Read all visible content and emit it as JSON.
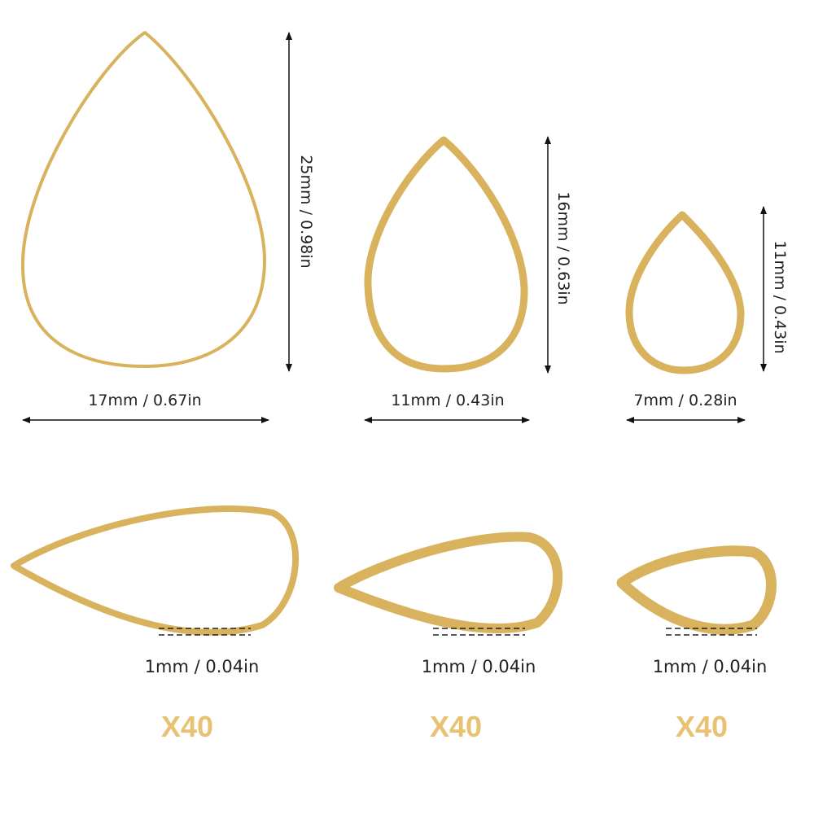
{
  "items": [
    {
      "width": "17mm / 0.67in",
      "height": "25mm / 0.98in",
      "thickness": "1mm / 0.04in",
      "quantity": "X40"
    },
    {
      "width": "11mm / 0.43in",
      "height": "16mm / 0.63in",
      "thickness": "1mm / 0.04in",
      "quantity": "X40"
    },
    {
      "width": "7mm / 0.28in",
      "height": "11mm / 0.43in",
      "thickness": "1mm / 0.04in",
      "quantity": "X40"
    }
  ]
}
